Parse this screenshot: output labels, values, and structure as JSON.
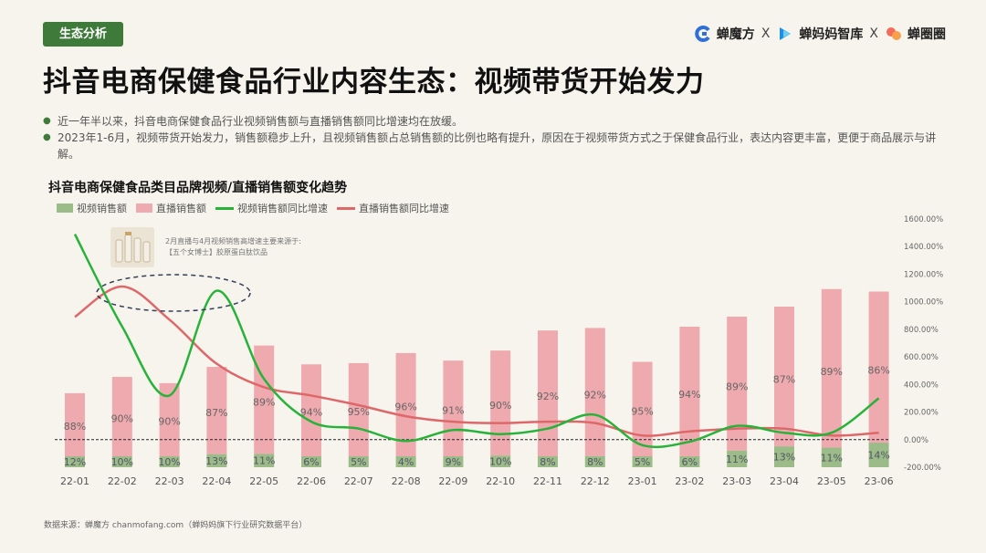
{
  "header": {
    "tag": "生态分析",
    "brands": [
      {
        "name": "蝉魔方",
        "icon": "chanmofang-logo-icon",
        "color": "#2f6fd6"
      },
      {
        "name": "蝉妈妈智库",
        "icon": "chanmama-logo-icon",
        "color": "#1f8fe0"
      },
      {
        "name": "蝉圈圈",
        "icon": "chanquanquan-logo-icon",
        "color": "#f26b5b"
      }
    ],
    "separator": "X"
  },
  "title": "抖音电商保健食品行业内容生态：视频带货开始发力",
  "bullets": [
    "近一年半以来，抖音电商保健食品行业视频销售额与直播销售额同比增速均在放缓。",
    "2023年1-6月，视频带货开始发力，销售额稳步上升，且视频销售额占总销售额的比例也略有提升，原因在于视频带货方式之于保健食品行业，表达内容更丰富，更便于商品展示与讲解。"
  ],
  "annotation": {
    "line1": "2月直播与4月视频销售高增速主要来源于:",
    "line2": "【五个女博士】胶原蛋白肽饮品"
  },
  "source": "数据来源：蝉魔方 chanmofang.com（蝉妈妈旗下行业研究数据平台）",
  "colors": {
    "accent": "#3e7a3a",
    "video_bar": "#9bbb88",
    "live_bar": "#eeaaae",
    "video_line": "#27b33a",
    "live_line": "#de6769"
  },
  "chart_data": {
    "type": "bar",
    "title": "抖音电商保健食品类目品牌视频/直播销售额变化趋势",
    "categories": [
      "22-01",
      "22-02",
      "22-03",
      "22-04",
      "22-05",
      "22-06",
      "22-07",
      "22-08",
      "22-09",
      "22-10",
      "22-11",
      "22-12",
      "23-01",
      "23-02",
      "23-03",
      "23-04",
      "23-05",
      "23-06"
    ],
    "series": [
      {
        "name": "视频销售额",
        "kind": "bar",
        "share_labels": [
          "12%",
          "10%",
          "10%",
          "13%",
          "11%",
          "6%",
          "5%",
          "4%",
          "9%",
          "10%",
          "8%",
          "8%",
          "5%",
          "6%",
          "11%",
          "13%",
          "11%",
          "14%"
        ]
      },
      {
        "name": "直播销售额",
        "kind": "bar",
        "share_labels": [
          "88%",
          "90%",
          "90%",
          "87%",
          "89%",
          "94%",
          "95%",
          "96%",
          "91%",
          "90%",
          "92%",
          "92%",
          "95%",
          "94%",
          "89%",
          "87%",
          "89%",
          "86%"
        ]
      },
      {
        "name": "视频销售额同比增速",
        "kind": "line",
        "axis": "right",
        "values": [
          1490,
          820,
          320,
          1080,
          440,
          130,
          80,
          -10,
          70,
          40,
          80,
          180,
          -40,
          -15,
          100,
          50,
          50,
          300
        ]
      },
      {
        "name": "直播销售额同比增速",
        "kind": "line",
        "axis": "right",
        "values": [
          890,
          1110,
          870,
          550,
          380,
          320,
          250,
          170,
          130,
          120,
          130,
          120,
          30,
          60,
          80,
          80,
          30,
          50
        ]
      }
    ],
    "bar_totals_relative": [
      370,
      500,
      450,
      580,
      750,
      600,
      610,
      690,
      630,
      710,
      870,
      890,
      620,
      900,
      980,
      1060,
      1200,
      1180
    ],
    "y2_ticks": [
      "1600.00%",
      "1400.00%",
      "1200.00%",
      "1000.00%",
      "800.00%",
      "600.00%",
      "400.00%",
      "200.00%",
      "0.00%",
      "-200.00%"
    ],
    "y2lim": [
      -200,
      1600
    ],
    "legend_position": "top-left",
    "grid": false
  }
}
